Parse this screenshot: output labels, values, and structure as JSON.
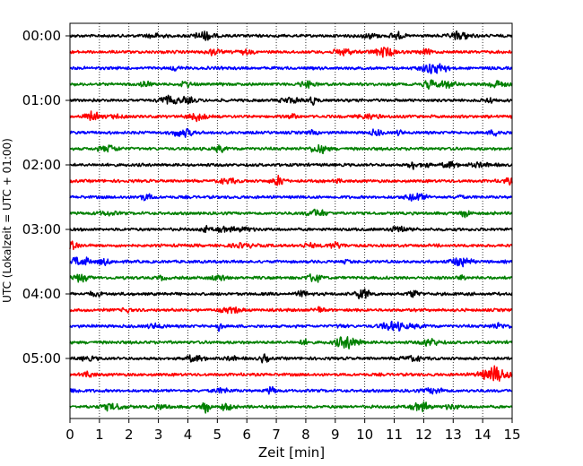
{
  "chart_data": {
    "type": "line",
    "title": "",
    "xlabel": "Zeit  [min]",
    "ylabel": "UTC (Lokalzeit = UTC + 01:00)",
    "xlim": [
      0,
      15
    ],
    "x_ticks": [
      0,
      1,
      2,
      3,
      4,
      5,
      6,
      7,
      8,
      9,
      10,
      11,
      12,
      13,
      14,
      15
    ],
    "x_tick_labels": [
      "0",
      "1",
      "2",
      "3",
      "4",
      "5",
      "6",
      "7",
      "8",
      "9",
      "10",
      "11",
      "12",
      "13",
      "14",
      "15"
    ],
    "y_tick_labels": [
      "00:00",
      "01:00",
      "02:00",
      "03:00",
      "04:00",
      "05:00"
    ],
    "grid": "vertical dotted",
    "legend": "none",
    "line_colors": [
      "#000000",
      "#ff0000",
      "#0000ff",
      "#008000"
    ],
    "trace_minutes": 15,
    "trace_count": 24,
    "traces": [
      {
        "start": "00:00",
        "color": "#000000"
      },
      {
        "start": "00:15",
        "color": "#ff0000"
      },
      {
        "start": "00:30",
        "color": "#0000ff"
      },
      {
        "start": "00:45",
        "color": "#008000"
      },
      {
        "start": "01:00",
        "color": "#000000"
      },
      {
        "start": "01:15",
        "color": "#ff0000"
      },
      {
        "start": "01:30",
        "color": "#0000ff"
      },
      {
        "start": "01:45",
        "color": "#008000"
      },
      {
        "start": "02:00",
        "color": "#000000"
      },
      {
        "start": "02:15",
        "color": "#ff0000"
      },
      {
        "start": "02:30",
        "color": "#0000ff"
      },
      {
        "start": "02:45",
        "color": "#008000"
      },
      {
        "start": "03:00",
        "color": "#000000"
      },
      {
        "start": "03:15",
        "color": "#ff0000"
      },
      {
        "start": "03:30",
        "color": "#0000ff"
      },
      {
        "start": "03:45",
        "color": "#008000"
      },
      {
        "start": "04:00",
        "color": "#000000"
      },
      {
        "start": "04:15",
        "color": "#ff0000"
      },
      {
        "start": "04:30",
        "color": "#0000ff"
      },
      {
        "start": "04:45",
        "color": "#008000"
      },
      {
        "start": "05:00",
        "color": "#000000"
      },
      {
        "start": "05:15",
        "color": "#ff0000"
      },
      {
        "start": "05:30",
        "color": "#0000ff"
      },
      {
        "start": "05:45",
        "color": "#008000"
      }
    ]
  }
}
